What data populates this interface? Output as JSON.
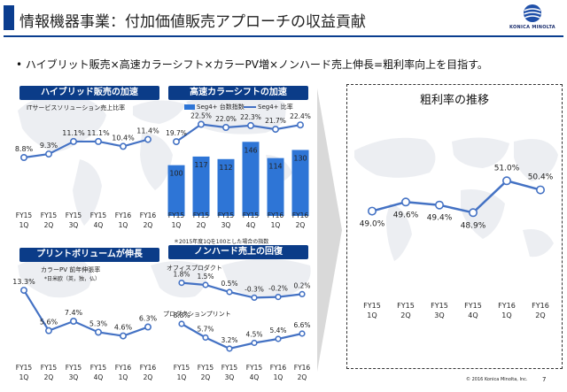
{
  "header": {
    "title": "情報機器事業：付加価値販売アプローチの収益貢献",
    "logo_text": "KONICA MINOLTA"
  },
  "bullet": "•  ハイブリット販売×高速カラーシフト×カラーPV増×ノンハード売上伸長=粗利率向上を目指す。",
  "colors": {
    "navy": "#0b3c88",
    "line": "#4472c4",
    "bar": "#2e75d6"
  },
  "panels": {
    "hybrid": {
      "title": "ハイブリッド販売の加速",
      "subtitle": "ITサービスソリューション売上比率"
    },
    "color": {
      "title": "高速カラーシフトの加速",
      "legend_bar": "Seg4+ 台数指数",
      "legend_line": "Seg4+ 比率",
      "note": "＊2015年度1Qを100とした場合の指数"
    },
    "pv": {
      "title": "プリントボリュームが伸長",
      "subtitle": "カラーPV 前年伸張率",
      "note": "*日米欧（英，独，仏）"
    },
    "nonhard": {
      "title": "ノンハード売上の回復",
      "label_office": "オフィスプロダクト",
      "label_production": "プロダクションプリント"
    },
    "margin": {
      "title": "粗利率の推移"
    }
  },
  "footer": {
    "copyright": "© 2016 Konica Minolta, Inc.",
    "page": "7"
  },
  "chart_data": [
    {
      "id": "hybrid",
      "type": "line",
      "categories": [
        "FY15\n1Q",
        "FY15\n2Q",
        "FY15\n3Q",
        "FY15\n4Q",
        "FY16\n1Q",
        "FY16\n2Q"
      ],
      "values": [
        8.8,
        9.3,
        11.1,
        11.1,
        10.4,
        11.4
      ],
      "labels": [
        "8.8%",
        "9.3%",
        "11.1%",
        "11.1%",
        "10.4%",
        "11.4%"
      ]
    },
    {
      "id": "color",
      "type": "bar",
      "categories": [
        "FY15\n1Q",
        "FY15\n2Q",
        "FY15\n3Q",
        "FY15\n4Q",
        "FY16\n1Q",
        "FY16\n2Q"
      ],
      "series": [
        {
          "name": "Seg4+ 台数指数",
          "values": [
            100,
            117,
            112,
            146,
            114,
            130
          ],
          "labels": [
            "100",
            "117",
            "112",
            "146",
            "114",
            "130"
          ]
        },
        {
          "name": "Seg4+ 比率",
          "values": [
            19.7,
            22.5,
            22.0,
            22.3,
            21.7,
            22.4
          ],
          "labels": [
            "19.7%",
            "22.5%",
            "22.0%",
            "22.3%",
            "21.7%",
            "22.4%"
          ]
        }
      ]
    },
    {
      "id": "pv",
      "type": "line",
      "categories": [
        "FY15\n1Q",
        "FY15\n2Q",
        "FY15\n3Q",
        "FY15\n4Q",
        "FY16\n1Q",
        "FY16\n2Q"
      ],
      "values": [
        13.3,
        5.6,
        7.4,
        5.3,
        4.6,
        6.3
      ],
      "labels": [
        "13.3%",
        "5.6%",
        "7.4%",
        "5.3%",
        "4.6%",
        "6.3%"
      ]
    },
    {
      "id": "nonhard",
      "type": "line",
      "categories": [
        "FY15\n1Q",
        "FY15\n2Q",
        "FY15\n3Q",
        "FY15\n4Q",
        "FY16\n1Q",
        "FY16\n2Q"
      ],
      "series": [
        {
          "name": "オフィスプロダクト",
          "values": [
            1.8,
            1.5,
            0.5,
            -0.3,
            -0.2,
            0.2
          ],
          "labels": [
            "1.8%",
            "1.5%",
            "0.5%",
            "-0.3%",
            "-0.2%",
            "0.2%"
          ]
        },
        {
          "name": "プロダクションプリント",
          "values": [
            8.8,
            5.7,
            3.2,
            4.5,
            5.4,
            6.6
          ],
          "labels": [
            "8.8%",
            "5.7%",
            "3.2%",
            "4.5%",
            "5.4%",
            "6.6%"
          ]
        }
      ]
    },
    {
      "id": "margin",
      "type": "line",
      "title": "粗利率の推移",
      "categories": [
        "FY15\n1Q",
        "FY15\n2Q",
        "FY15\n3Q",
        "FY15\n4Q",
        "FY16\n1Q",
        "FY16\n2Q"
      ],
      "values": [
        49.0,
        49.6,
        49.4,
        48.9,
        51.0,
        50.4
      ],
      "labels": [
        "49.0%",
        "49.6%",
        "49.4%",
        "48.9%",
        "51.0%",
        "50.4%"
      ]
    }
  ]
}
